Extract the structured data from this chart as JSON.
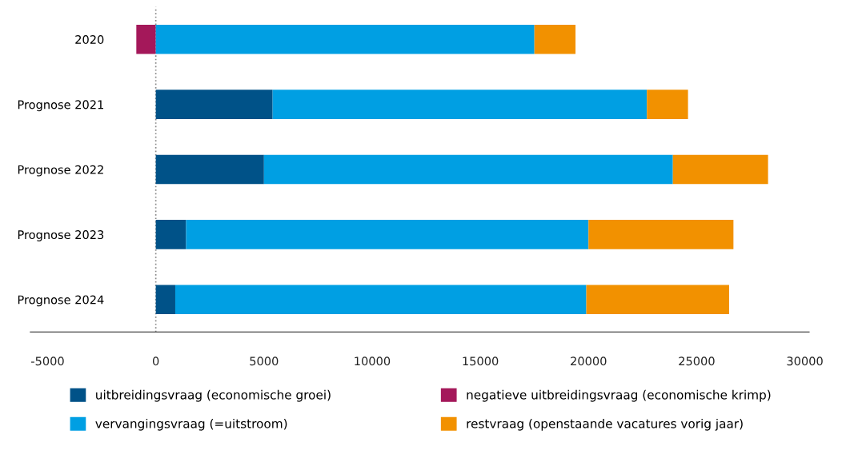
{
  "chart_data": {
    "type": "bar",
    "orientation": "horizontal",
    "stacked": true,
    "categories": [
      "2020",
      "Prognose 2021",
      "Prognose 2022",
      "Prognose 2023",
      "Prognose 2024"
    ],
    "series": [
      {
        "name": "uitbreidingsvraag (economische groei)",
        "color": "#005288",
        "values": [
          0,
          5400,
          5000,
          1400,
          900
        ]
      },
      {
        "name": "negatieve uitbreidingsvraag (economische krimp)",
        "color": "#a4185a",
        "values": [
          -900,
          0,
          0,
          0,
          0
        ]
      },
      {
        "name": "vervangingsvraag (=uitstroom)",
        "color": "#009fe3",
        "values": [
          17500,
          17300,
          18900,
          18600,
          19000
        ]
      },
      {
        "name": "restvraag (openstaande vacatures vorig jaar)",
        "color": "#f29100",
        "values": [
          1900,
          1900,
          4400,
          6700,
          6600
        ]
      }
    ],
    "xlim": [
      -5800,
      30200
    ],
    "xticks": [
      -5000,
      0,
      5000,
      10000,
      15000,
      20000,
      25000,
      30000
    ],
    "ref_lines": [
      {
        "axis": "x",
        "value": 0,
        "color": "#888888",
        "line_style": "dotted"
      }
    ],
    "grid": false,
    "legend": "bottom"
  }
}
